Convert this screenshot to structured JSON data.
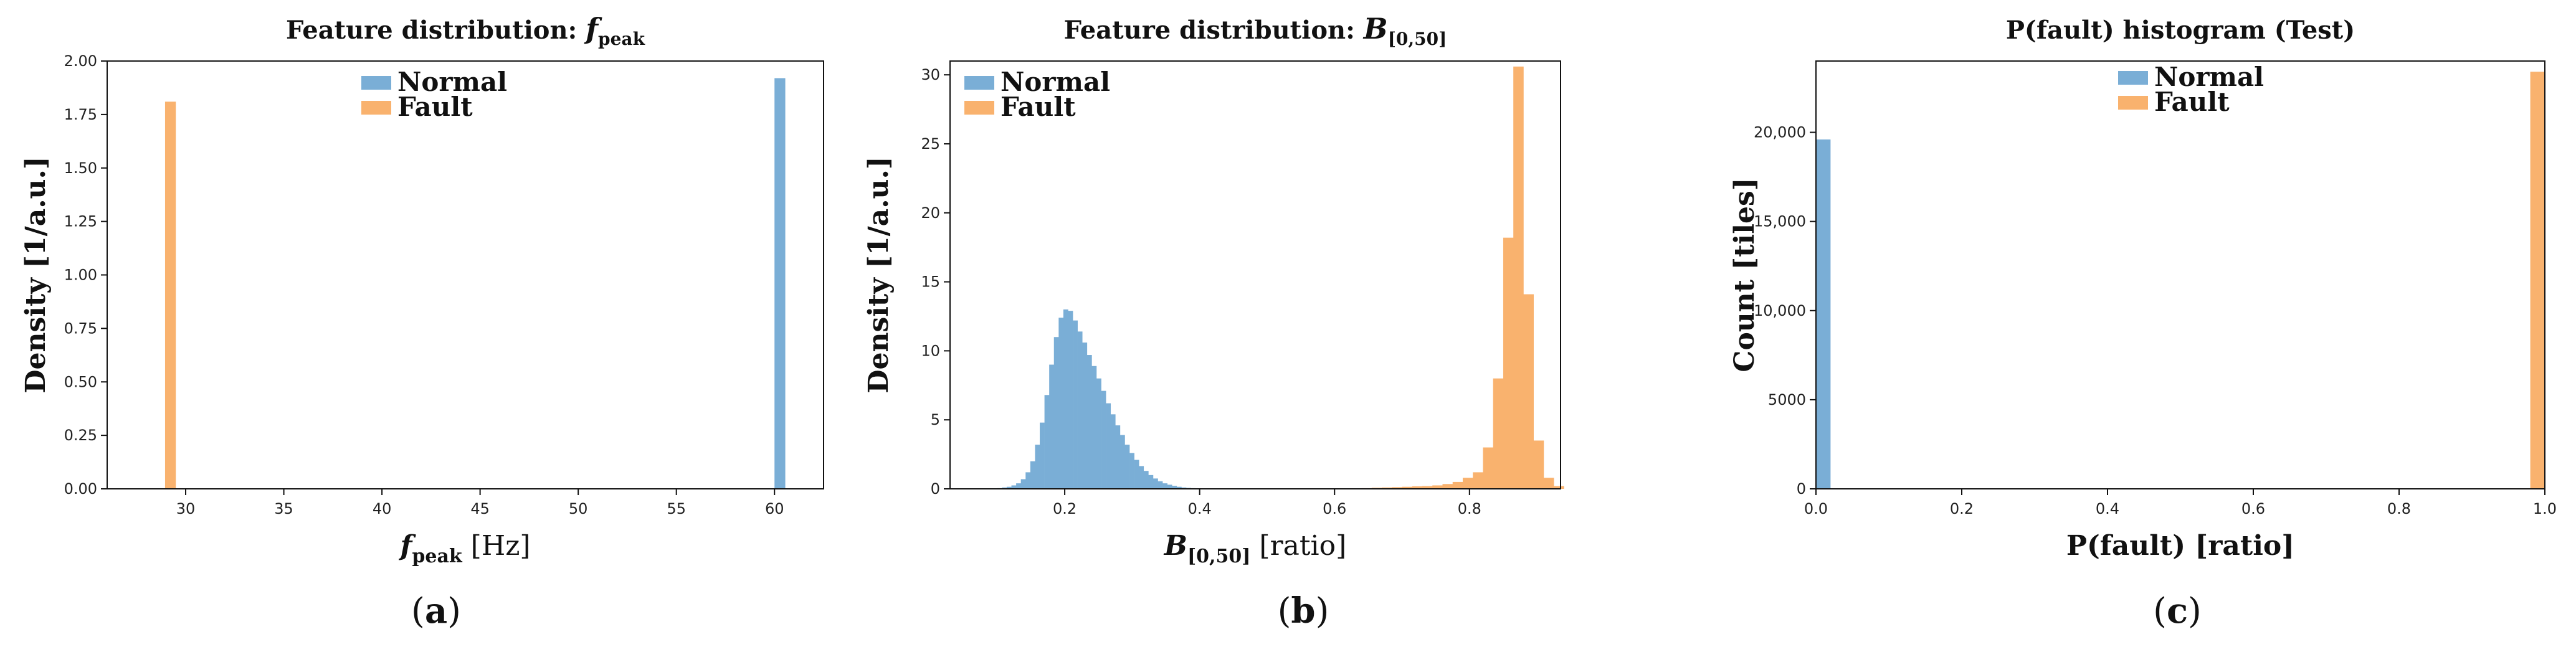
{
  "colors": {
    "normal": "#7aaed6",
    "fault": "#f9b26e"
  },
  "chart_data": [
    {
      "type": "bar",
      "panel_label": "a",
      "title": "Feature distribution: ",
      "title_math": "f",
      "title_math_sub": "peak",
      "xlabel_math": "f",
      "xlabel_math_sub": "peak",
      "xlabel": " [Hz]",
      "ylabel": "Density [1/a.u.]",
      "xlim": [
        26,
        62.5
      ],
      "ylim": [
        0,
        2.0
      ],
      "xticks": [
        30,
        35,
        40,
        45,
        50,
        55,
        60
      ],
      "xtick_labels": [
        "30",
        "35",
        "40",
        "45",
        "50",
        "55",
        "60"
      ],
      "yticks": [
        0,
        0.25,
        0.5,
        0.75,
        1.0,
        1.25,
        1.5,
        1.75,
        2.0
      ],
      "ytick_labels": [
        "0.00",
        "0.25",
        "0.50",
        "0.75",
        "1.00",
        "1.25",
        "1.50",
        "1.75",
        "2.00"
      ],
      "legend": "top-center",
      "series": [
        {
          "name": "Normal",
          "color": "#7aaed6",
          "bins": [
            [
              60.0,
              60.55,
              1.92
            ]
          ]
        },
        {
          "name": "Fault",
          "color": "#f9b26e",
          "bins": [
            [
              28.95,
              29.5,
              1.81
            ]
          ]
        }
      ]
    },
    {
      "type": "bar",
      "panel_label": "b",
      "title": "Feature distribution: ",
      "title_math": "B",
      "title_math_sub": "[0,50]",
      "xlabel_math": "B",
      "xlabel_math_sub": "[0,50]",
      "xlabel": " [ratio]",
      "ylabel": "Density [1/a.u.]",
      "xlim": [
        0.03,
        0.935
      ],
      "ylim": [
        0,
        31
      ],
      "xticks": [
        0.2,
        0.4,
        0.6,
        0.8
      ],
      "xtick_labels": [
        "0.2",
        "0.4",
        "0.6",
        "0.8"
      ],
      "yticks": [
        0,
        5,
        10,
        15,
        20,
        25,
        30
      ],
      "ytick_labels": [
        "0",
        "5",
        "10",
        "15",
        "20",
        "25",
        "30"
      ],
      "legend": "top-left",
      "series": [
        {
          "name": "Normal",
          "color": "#7aaed6",
          "bin_start": 0.1,
          "bin_width": 0.007,
          "values": [
            0.05,
            0.1,
            0.15,
            0.25,
            0.4,
            0.7,
            1.2,
            2.0,
            3.2,
            4.8,
            6.8,
            9.0,
            11.0,
            12.4,
            13.0,
            12.9,
            12.2,
            11.4,
            10.6,
            9.7,
            8.9,
            8.0,
            7.1,
            6.2,
            5.4,
            4.6,
            3.9,
            3.2,
            2.6,
            2.1,
            1.65,
            1.3,
            1.0,
            0.75,
            0.55,
            0.4,
            0.3,
            0.22,
            0.15,
            0.1,
            0.07,
            0.05,
            0.03
          ]
        },
        {
          "name": "Fault",
          "color": "#f9b26e",
          "bin_start": 0.64,
          "bin_width": 0.015,
          "values": [
            0.05,
            0.08,
            0.1,
            0.12,
            0.15,
            0.18,
            0.2,
            0.25,
            0.35,
            0.5,
            0.8,
            1.2,
            3.0,
            8.0,
            18.2,
            30.6,
            14.1,
            3.5,
            0.8,
            0.2
          ]
        }
      ]
    },
    {
      "type": "bar",
      "panel_label": "c",
      "title": "P(fault) histogram (Test)",
      "xlabel": "P(fault) [ratio]",
      "ylabel": "Count [tiles]",
      "xlim": [
        0,
        1.0
      ],
      "ylim": [
        0,
        24000
      ],
      "xticks": [
        0,
        0.2,
        0.4,
        0.6,
        0.8,
        1.0
      ],
      "xtick_labels": [
        "0.0",
        "0.2",
        "0.4",
        "0.6",
        "0.8",
        "1.0"
      ],
      "yticks": [
        0,
        5000,
        10000,
        15000,
        20000
      ],
      "ytick_labels": [
        "0",
        "5000",
        "10,000",
        "15,000",
        "20,000"
      ],
      "legend": "top-center",
      "series": [
        {
          "name": "Normal",
          "color": "#7aaed6",
          "bins": [
            [
              0.0,
              0.02,
              19600
            ]
          ]
        },
        {
          "name": "Fault",
          "color": "#f9b26e",
          "bins": [
            [
              0.98,
              1.0,
              23400
            ]
          ]
        }
      ]
    }
  ]
}
